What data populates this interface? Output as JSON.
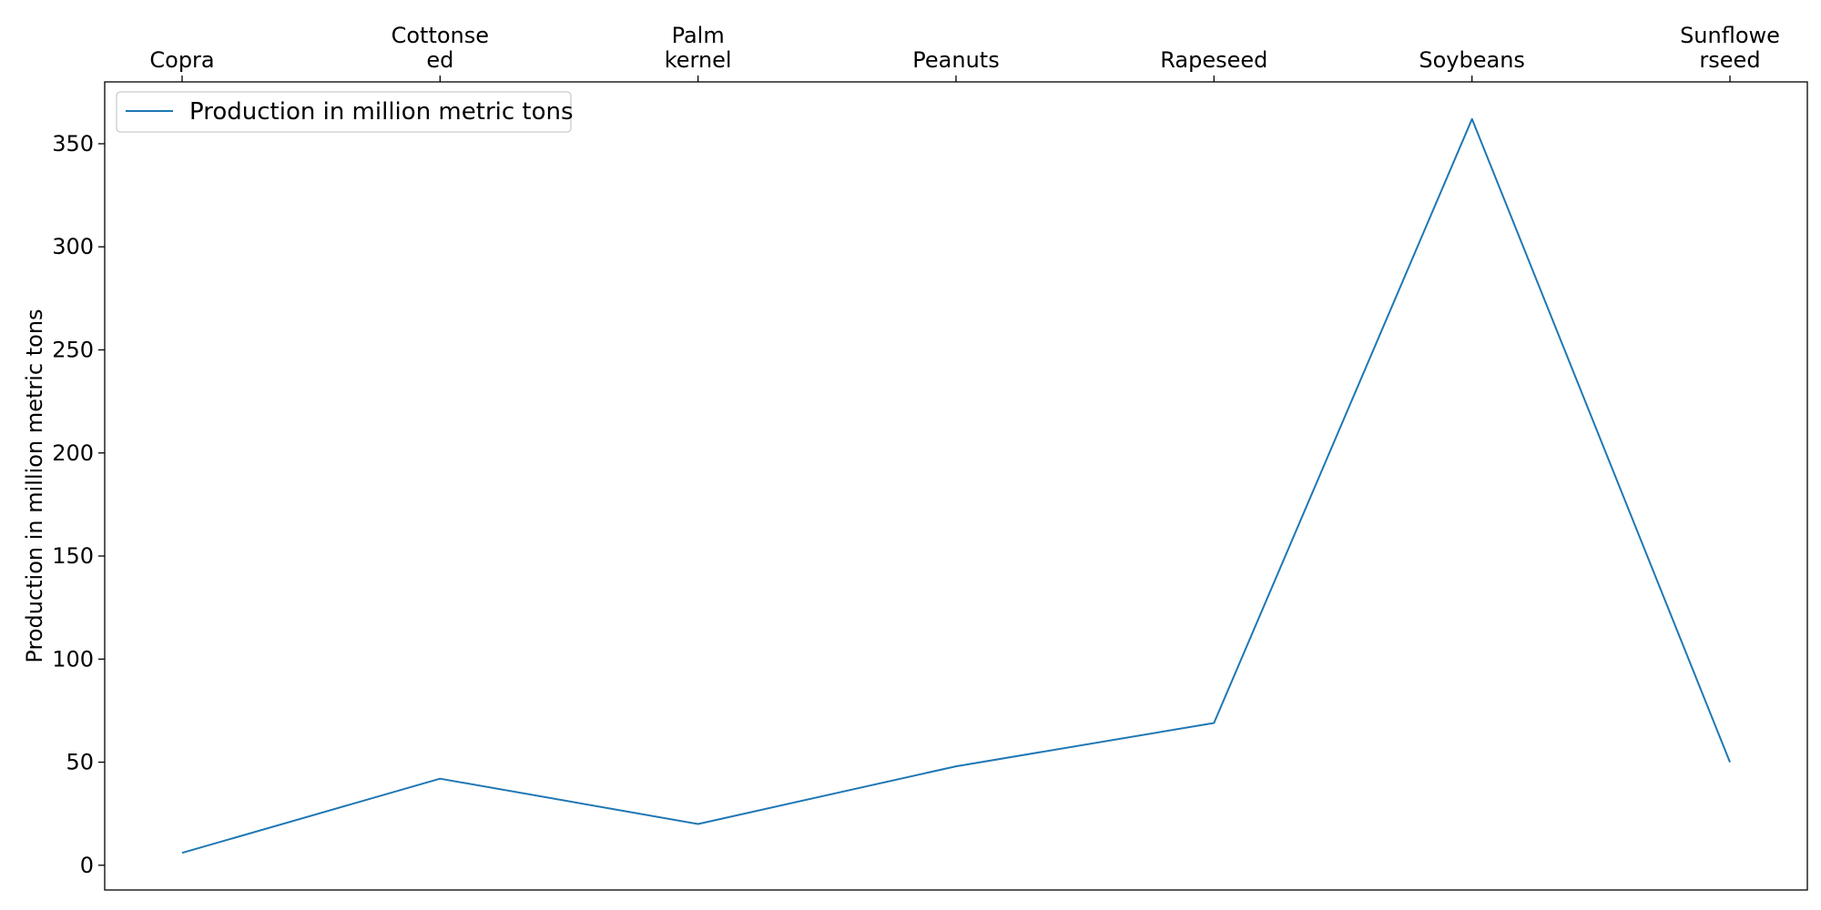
{
  "chart_data": {
    "type": "line",
    "categories": [
      "Copra",
      "Cottonseed",
      "Palm kernel",
      "Peanuts",
      "Rapeseed",
      "Soybeans",
      "Sunflowerseed"
    ],
    "category_label_lines": [
      [
        "Copra"
      ],
      [
        "Cottonse",
        "ed"
      ],
      [
        "Palm",
        "kernel"
      ],
      [
        "Peanuts"
      ],
      [
        "Rapeseed"
      ],
      [
        "Soybeans"
      ],
      [
        "Sunflowe",
        "rseed"
      ]
    ],
    "series": [
      {
        "name": "Production in million metric tons",
        "values": [
          6,
          42,
          20,
          48,
          69,
          362,
          50
        ],
        "color": "#1f77b4"
      }
    ],
    "title": "",
    "xlabel": "",
    "ylabel": "Production in million metric tons",
    "ylim": [
      -12,
      380
    ],
    "yticks": [
      0,
      50,
      100,
      150,
      200,
      250,
      300,
      350
    ],
    "xaxis_position": "top",
    "grid": false,
    "legend_position": "top-left"
  }
}
